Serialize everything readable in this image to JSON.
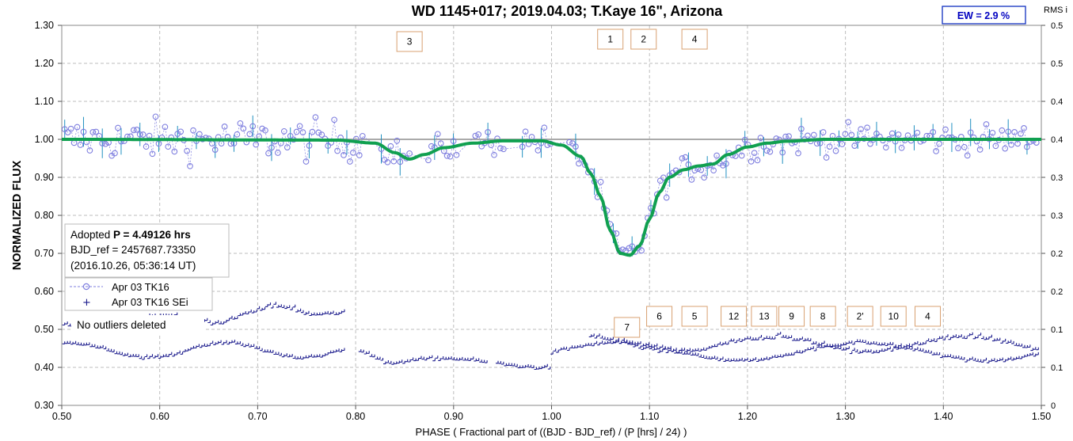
{
  "chart_data": {
    "type": "scatter",
    "title": "WD 1145+017; 2019.04.03; T.Kaye 16\", Arizona",
    "xlabel": "PHASE ( Fractional part of ((BJD - BJD_ref) / (P [hrs] / 24) )",
    "ylabel": "NORMALIZED FLUX",
    "y2label": "RMS i",
    "xlim": [
      0.5,
      1.5
    ],
    "ylim": [
      0.3,
      1.3
    ],
    "y2lim": [
      0.0,
      0.5
    ],
    "xticks": [
      "0.50",
      "0.60",
      "0.70",
      "0.80",
      "0.90",
      "1.00",
      "1.10",
      "1.20",
      "1.30",
      "1.40",
      "1.50"
    ],
    "yticks": [
      "0.30",
      "0.40",
      "0.50",
      "0.60",
      "0.70",
      "0.80",
      "0.90",
      "1.00",
      "1.10",
      "1.20",
      "1.30"
    ],
    "y2ticks": [
      "0",
      "0.1",
      "0.1",
      "0.2",
      "0.2",
      "0.3",
      "0.3",
      "0.4",
      "0.4",
      "0.5",
      "0.5"
    ],
    "grid": true,
    "reference_line_y": 1.0,
    "ew_label": "EW =  2.9 %",
    "info_box": {
      "line1_prefix": "Adopted ",
      "line1_bold": "P = 4.49126 hrs",
      "line2": "BJD_ref = 2457687.73350",
      "line3": "(2016.10.26, 05:36:14 UT)"
    },
    "legend": [
      {
        "label": "Apr 03 TK16",
        "marker": "circle-dashed"
      },
      {
        "label": "Apr 03 TK16 SEi",
        "marker": "plus"
      }
    ],
    "note": "No outliers deleted",
    "top_labels": [
      {
        "text": "3",
        "x": 0.855
      },
      {
        "text": "1",
        "x": 1.06
      },
      {
        "text": "2",
        "x": 1.094
      },
      {
        "text": "4",
        "x": 1.146
      }
    ],
    "bottom_labels": [
      {
        "text": "7",
        "x": 1.077
      },
      {
        "text": "6",
        "x": 1.11
      },
      {
        "text": "5",
        "x": 1.146
      },
      {
        "text": "12",
        "x": 1.186
      },
      {
        "text": "13",
        "x": 1.217
      },
      {
        "text": "9",
        "x": 1.245
      },
      {
        "text": "8",
        "x": 1.277
      },
      {
        "text": "2'",
        "x": 1.315
      },
      {
        "text": "10",
        "x": 1.349
      },
      {
        "text": "4",
        "x": 1.384
      }
    ],
    "model_series": {
      "name": "",
      "color": "#10a050",
      "x": [
        0.5,
        0.78,
        0.82,
        0.84,
        0.855,
        0.87,
        0.89,
        0.92,
        0.95,
        0.99,
        1.01,
        1.03,
        1.04,
        1.05,
        1.06,
        1.07,
        1.08,
        1.09,
        1.1,
        1.11,
        1.12,
        1.135,
        1.15,
        1.165,
        1.18,
        1.2,
        1.22,
        1.24,
        1.28,
        1.5
      ],
      "y": [
        1.0,
        0.998,
        0.99,
        0.965,
        0.948,
        0.96,
        0.978,
        0.99,
        0.996,
        0.996,
        0.985,
        0.955,
        0.91,
        0.85,
        0.76,
        0.7,
        0.695,
        0.72,
        0.79,
        0.86,
        0.9,
        0.92,
        0.93,
        0.935,
        0.96,
        0.98,
        0.99,
        0.995,
        1.0,
        1.0
      ]
    },
    "colors": {
      "data": "#7f7fdf",
      "rms": "#1a1a8c",
      "model": "#10a050",
      "label_border": "#d8a070",
      "grid": "#bdbdbd"
    }
  }
}
